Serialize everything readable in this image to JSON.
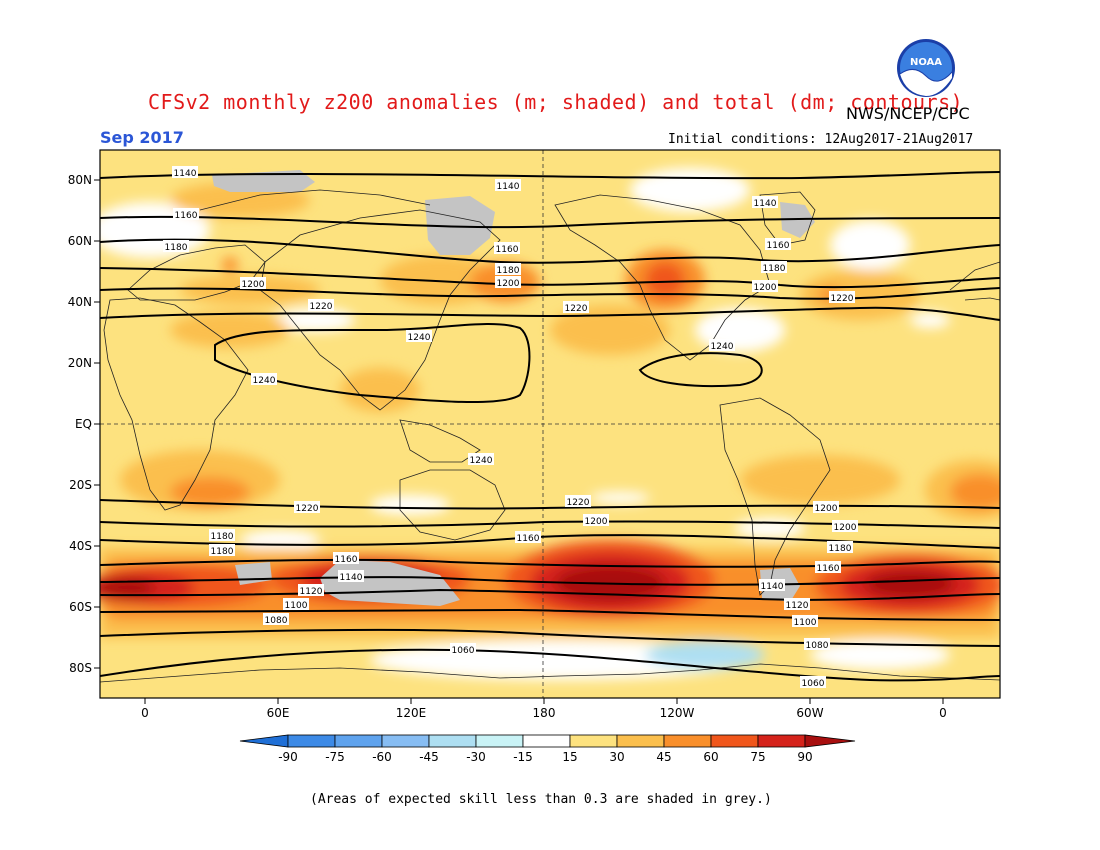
{
  "title": "CFSv2 monthly z200 anomalies (m; shaded) and total (dm; contours)",
  "month": "Sep 2017",
  "agency": "NWS/NCEP/CPC",
  "logo_text": "NOAA",
  "initial_conditions": "Initial conditions: 12Aug2017-21Aug2017",
  "footnote": "(Areas of expected skill less than 0.3 are shaded in grey.)",
  "lat_labels": [
    "80N",
    "60N",
    "40N",
    "20N",
    "EQ",
    "20S",
    "40S",
    "60S",
    "80S"
  ],
  "lon_labels": [
    "0",
    "60E",
    "120E",
    "180",
    "120W",
    "60W",
    "0"
  ],
  "colorbar": {
    "ticks": [
      "-90",
      "-75",
      "-60",
      "-45",
      "-30",
      "-15",
      "15",
      "30",
      "45",
      "60",
      "75",
      "90"
    ],
    "colors": [
      "#1f6fd6",
      "#3d8ae6",
      "#5fa3ee",
      "#87bdf3",
      "#aedff2",
      "#c9f3f6",
      "#ffffff",
      "#fde27f",
      "#fbbf4d",
      "#f98f2b",
      "#f0561b",
      "#d5231b",
      "#a80f0f"
    ]
  },
  "colors": {
    "skill_grey": "#c4c4c4",
    "title_red": "#e21a1a",
    "month_blue": "#2b56d6"
  },
  "contour_labels": [
    "1140",
    "1140",
    "1140",
    "1160",
    "1160",
    "1160",
    "1180",
    "1180",
    "1180",
    "1200",
    "1200",
    "1200",
    "1220",
    "1220",
    "1220",
    "1240",
    "1240",
    "1240",
    "1240",
    "1220",
    "1220",
    "1200",
    "1200",
    "1200",
    "1180",
    "1180",
    "1180",
    "1160",
    "1160",
    "1160",
    "1140",
    "1140",
    "1120",
    "1120",
    "1100",
    "1100",
    "1080",
    "1080",
    "1060",
    "1060"
  ]
}
